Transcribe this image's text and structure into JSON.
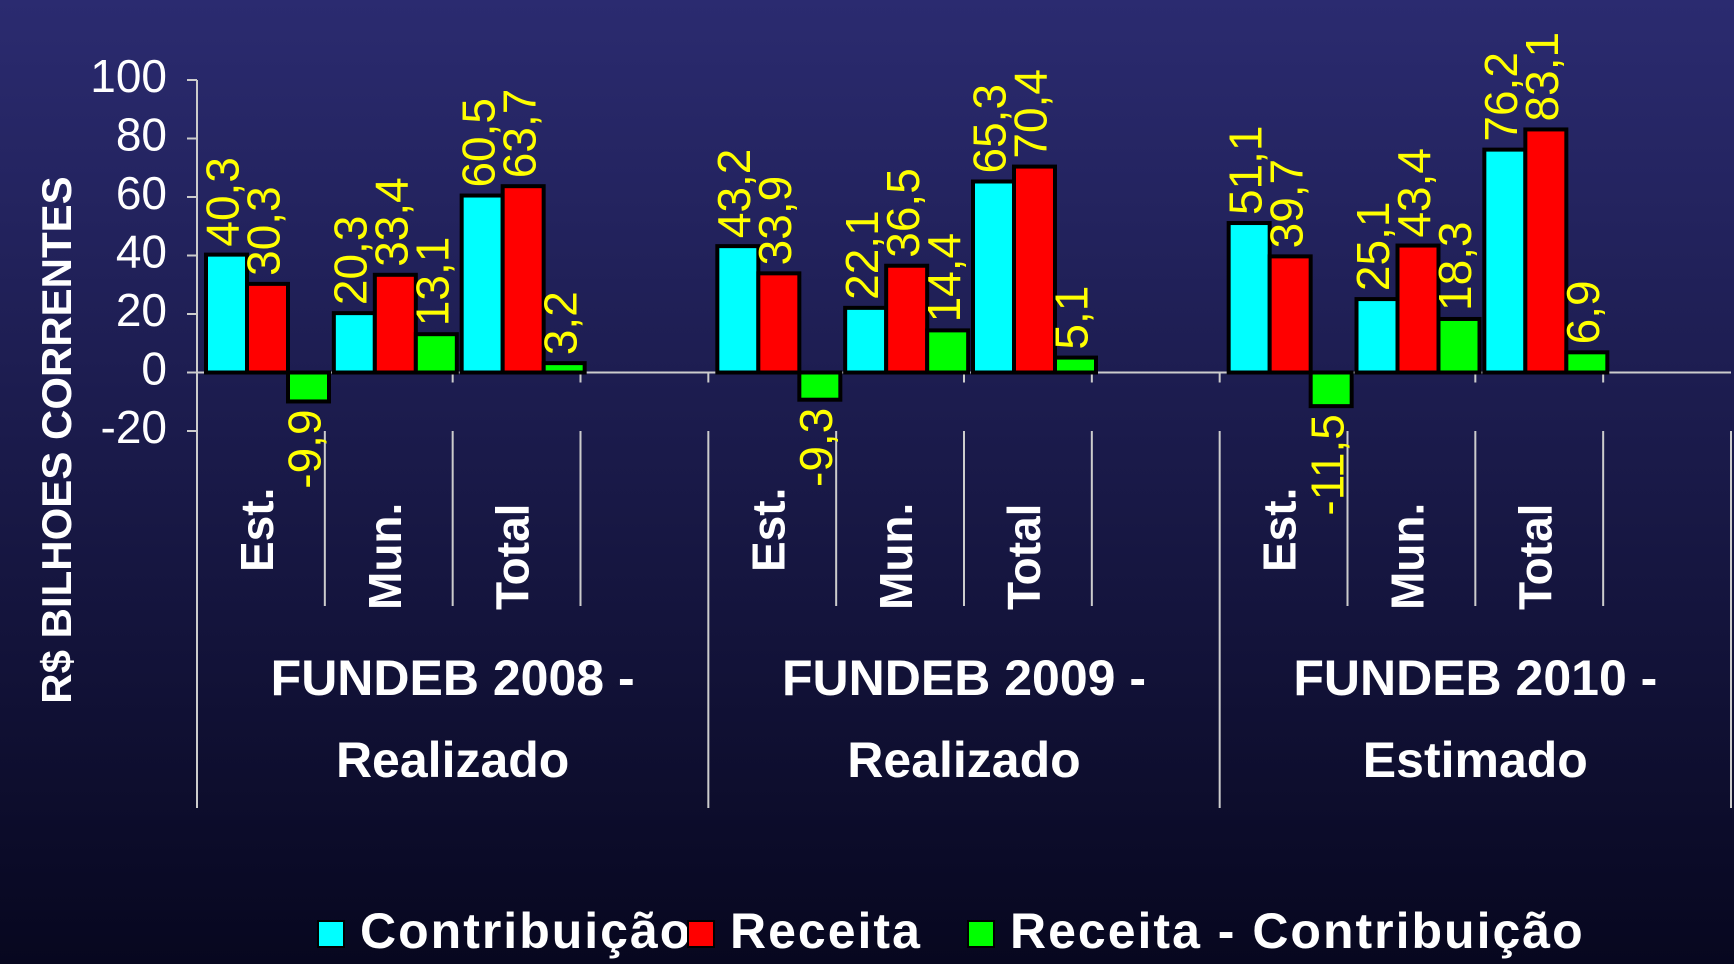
{
  "chart_data": {
    "type": "bar",
    "y_label": "R$ BILHOES CORRENTES",
    "groups": [
      [
        "FUNDEB 2008 -",
        "Realizado"
      ],
      [
        "FUNDEB 2009 -",
        "Realizado"
      ],
      [
        "FUNDEB 2010 -",
        "Estimado"
      ]
    ],
    "categories": [
      "Est.",
      "Mun.",
      "Total",
      null,
      "Est.",
      "Mun.",
      "Total",
      null,
      "Est.",
      "Mun.",
      "Total",
      null
    ],
    "series": [
      {
        "name": "Contribuição",
        "color": "#00ffff",
        "values": [
          40.3,
          20.3,
          60.5,
          null,
          43.2,
          22.1,
          65.3,
          null,
          51.1,
          25.1,
          76.2,
          null
        ],
        "value_labels": [
          "40,3",
          "20,3",
          "60,5",
          null,
          "43,2",
          "22,1",
          "65,3",
          null,
          "51,1",
          "25,1",
          "76,2",
          null
        ]
      },
      {
        "name": "Receita",
        "color": "#ff0000",
        "values": [
          30.3,
          33.4,
          63.7,
          null,
          33.9,
          36.5,
          70.4,
          null,
          39.7,
          43.4,
          83.1,
          null
        ],
        "value_labels": [
          "30,3",
          "33,4",
          "63,7",
          null,
          "33,9",
          "36,5",
          "70,4",
          null,
          "39,7",
          "43,4",
          "83,1",
          null
        ]
      },
      {
        "name": "Receita - Contribuição",
        "color": "#00ff00",
        "values": [
          -9.9,
          13.1,
          3.2,
          null,
          -9.3,
          14.4,
          5.1,
          null,
          -11.5,
          18.3,
          6.9,
          null
        ],
        "value_labels": [
          "-9,9",
          "13,1",
          "3,2",
          null,
          "-9,3",
          "14,4",
          "5,1",
          null,
          "-11,5",
          "18,3",
          "6,9",
          null
        ]
      }
    ],
    "ylim": [
      -20,
      100
    ],
    "yticks": [
      -20,
      0,
      20,
      40,
      60,
      80,
      100
    ],
    "label_color": "#ffff00",
    "legend": "bottom"
  }
}
